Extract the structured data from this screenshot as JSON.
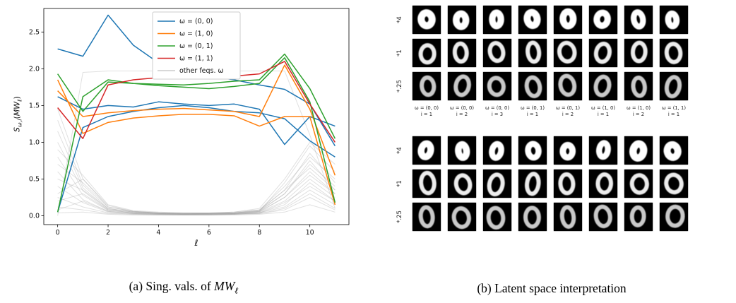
{
  "figure": {
    "caption_a": {
      "prefix": "(a) Sing. vals. of",
      "math": "MW",
      "sub": "ℓ"
    },
    "caption_b": "(b) Latent space interpretation"
  },
  "chart_data": {
    "type": "line",
    "xlabel": "ℓ",
    "ylabel_parts": {
      "s": "S",
      "sub": "ω,i",
      "open": "(",
      "mw": "MW",
      "mwsub": "ℓ",
      "close": ")"
    },
    "x": [
      0,
      1,
      2,
      3,
      4,
      5,
      6,
      7,
      8,
      9,
      10,
      11
    ],
    "xticks": [
      0,
      2,
      4,
      6,
      8,
      10
    ],
    "yticks": [
      0.0,
      0.5,
      1.0,
      1.5,
      2.0,
      2.5
    ],
    "xlim": [
      -0.55,
      11.55
    ],
    "ylim": [
      -0.12,
      2.82
    ],
    "legend": [
      {
        "label": "ω = (0, 0)",
        "color": "#1f77b4"
      },
      {
        "label": "ω = (1, 0)",
        "color": "#ff7f0e"
      },
      {
        "label": "ω = (0, 1)",
        "color": "#2ca02c"
      },
      {
        "label": "ω = (1, 1)",
        "color": "#d62728"
      },
      {
        "label": "other feqs. ω",
        "color": "#cccccc"
      }
    ],
    "series": [
      {
        "name": "ω = (0, 0), i = 1",
        "color": "#1f77b4",
        "values": [
          2.27,
          2.17,
          2.73,
          2.32,
          2.08,
          1.95,
          1.9,
          1.85,
          1.78,
          1.72,
          1.52,
          0.95
        ]
      },
      {
        "name": "ω = (0, 0), i = 2",
        "color": "#1f77b4",
        "values": [
          1.62,
          1.45,
          1.5,
          1.48,
          1.55,
          1.52,
          1.5,
          1.52,
          1.45,
          0.97,
          1.35,
          1.22
        ]
      },
      {
        "name": "ω = (0, 0), i = 3",
        "color": "#1f77b4",
        "values": [
          0.05,
          1.2,
          1.35,
          1.42,
          1.47,
          1.5,
          1.47,
          1.42,
          1.4,
          1.32,
          1.02,
          0.8
        ]
      },
      {
        "name": "ω = (1, 0), i = 1",
        "color": "#ff7f0e",
        "values": [
          1.85,
          1.12,
          1.27,
          1.33,
          1.36,
          1.38,
          1.38,
          1.36,
          1.22,
          1.35,
          1.35,
          0.15
        ]
      },
      {
        "name": "ω = (1, 0), i = 2",
        "color": "#ff7f0e",
        "values": [
          1.7,
          1.35,
          1.4,
          1.43,
          1.45,
          1.46,
          1.44,
          1.42,
          1.35,
          2.05,
          1.45,
          0.55
        ]
      },
      {
        "name": "ω = (0, 1), i = 1",
        "color": "#2ca02c",
        "values": [
          1.93,
          1.42,
          1.82,
          1.8,
          1.79,
          1.78,
          1.8,
          1.83,
          1.85,
          2.2,
          1.73,
          1.05
        ]
      },
      {
        "name": "ω = (0, 1), i = 2",
        "color": "#2ca02c",
        "values": [
          0.05,
          1.62,
          1.85,
          1.8,
          1.77,
          1.75,
          1.73,
          1.76,
          1.8,
          2.15,
          1.55,
          0.18
        ]
      },
      {
        "name": "ω = (1, 1), i = 1",
        "color": "#d62728",
        "values": [
          1.47,
          1.05,
          1.78,
          1.85,
          1.88,
          1.9,
          1.88,
          1.9,
          1.93,
          2.1,
          1.52,
          1.0
        ]
      }
    ],
    "other_series": [
      [
        1.45,
        0.5,
        0.12,
        0.06,
        0.04,
        0.04,
        0.04,
        0.05,
        0.08,
        0.35,
        0.85,
        0.45
      ],
      [
        1.3,
        0.42,
        0.1,
        0.05,
        0.04,
        0.03,
        0.03,
        0.04,
        0.07,
        0.3,
        0.75,
        0.35
      ],
      [
        1.15,
        0.38,
        0.09,
        0.05,
        0.03,
        0.03,
        0.03,
        0.04,
        0.06,
        0.45,
        0.95,
        0.6
      ],
      [
        1.0,
        0.34,
        0.08,
        0.04,
        0.03,
        0.02,
        0.03,
        0.03,
        0.06,
        0.25,
        0.6,
        0.3
      ],
      [
        0.9,
        0.55,
        0.15,
        0.07,
        0.05,
        0.04,
        0.04,
        0.05,
        0.1,
        0.5,
        1.0,
        0.7
      ],
      [
        0.8,
        0.28,
        0.07,
        0.04,
        0.03,
        0.02,
        0.02,
        0.03,
        0.05,
        0.2,
        0.5,
        0.25
      ],
      [
        0.7,
        0.45,
        0.12,
        0.06,
        0.04,
        0.03,
        0.03,
        0.04,
        0.08,
        0.4,
        0.8,
        0.5
      ],
      [
        0.6,
        0.22,
        0.06,
        0.03,
        0.02,
        0.02,
        0.02,
        0.03,
        0.04,
        0.15,
        0.45,
        0.2
      ],
      [
        0.5,
        0.35,
        0.1,
        0.05,
        0.03,
        0.03,
        0.03,
        0.03,
        0.06,
        0.3,
        0.7,
        0.4
      ],
      [
        0.4,
        0.18,
        0.05,
        0.03,
        0.02,
        0.02,
        0.02,
        0.02,
        0.04,
        0.12,
        0.35,
        0.15
      ],
      [
        0.3,
        0.5,
        0.14,
        0.06,
        0.04,
        0.03,
        0.03,
        0.04,
        0.07,
        0.35,
        0.65,
        0.35
      ],
      [
        0.25,
        0.12,
        0.04,
        0.02,
        0.02,
        0.01,
        0.01,
        0.02,
        0.03,
        0.1,
        0.3,
        0.1
      ],
      [
        0.2,
        0.3,
        0.08,
        0.04,
        0.03,
        0.02,
        0.02,
        0.03,
        0.05,
        0.25,
        0.55,
        0.3
      ],
      [
        0.12,
        0.08,
        0.03,
        0.02,
        0.01,
        0.01,
        0.01,
        0.02,
        0.03,
        0.08,
        0.25,
        0.08
      ],
      [
        0.08,
        0.2,
        0.06,
        0.03,
        0.02,
        0.02,
        0.02,
        0.02,
        0.04,
        0.18,
        0.4,
        0.2
      ],
      [
        0.04,
        0.05,
        0.02,
        0.01,
        0.01,
        0.01,
        0.01,
        0.01,
        0.02,
        0.05,
        0.15,
        0.05
      ],
      [
        0.0,
        1.95,
        1.97,
        1.97,
        1.97,
        1.97,
        1.97,
        1.97,
        1.97,
        1.97,
        1.1,
        0.1
      ]
    ]
  },
  "panel_b": {
    "blocks": 2,
    "digit": "0",
    "row_labels": [
      "*4",
      "*1",
      "*.25"
    ],
    "col_labels": [
      {
        "omega": "ω = (0, 0)",
        "i": "i = 1"
      },
      {
        "omega": "ω = (0, 0)",
        "i": "i = 2"
      },
      {
        "omega": "ω = (0, 0)",
        "i": "i = 3"
      },
      {
        "omega": "ω = (0, 1)",
        "i": "i = 1"
      },
      {
        "omega": "ω = (0, 1)",
        "i": "i = 2"
      },
      {
        "omega": "ω = (1, 0)",
        "i": "i = 1"
      },
      {
        "omega": "ω = (1, 0)",
        "i": "i = 2"
      },
      {
        "omega": "ω = (1, 1)",
        "i": "i = 1"
      }
    ]
  }
}
